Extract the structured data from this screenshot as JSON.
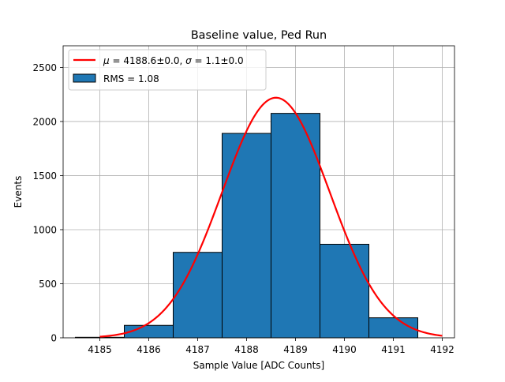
{
  "chart_data": {
    "type": "bar",
    "title": "Baseline value, Ped Run",
    "xlabel": "Sample Value [ADC Counts]",
    "ylabel": "Events",
    "xlim": [
      4184.25,
      4192.25
    ],
    "ylim": [
      0,
      2700
    ],
    "xticks": [
      4185,
      4186,
      4187,
      4188,
      4189,
      4190,
      4191,
      4192
    ],
    "yticks": [
      0,
      500,
      1000,
      1500,
      2000,
      2500
    ],
    "grid": true,
    "legend_position": "upper-left",
    "bins": [
      {
        "start": 4184.5,
        "end": 4185.5,
        "count": 5
      },
      {
        "start": 4185.5,
        "end": 4186.5,
        "count": 115
      },
      {
        "start": 4186.5,
        "end": 4187.5,
        "count": 790
      },
      {
        "start": 4187.5,
        "end": 4188.5,
        "count": 1890
      },
      {
        "start": 4188.5,
        "end": 4189.5,
        "count": 2075
      },
      {
        "start": 4189.5,
        "end": 4190.5,
        "count": 865
      },
      {
        "start": 4190.5,
        "end": 4191.5,
        "count": 185
      }
    ],
    "fit": {
      "mu": 4188.6,
      "sigma": 1.1,
      "amplitude": 2220,
      "x_range": [
        4185,
        4192
      ],
      "color": "#ff0000"
    },
    "bar_color": "#1f77b4",
    "legend": [
      {
        "mu_text": "4188.6±0.0",
        "sigma_text": "1.1±0.0",
        "kind": "line",
        "color": "#ff0000"
      },
      {
        "label": "RMS = 1.08",
        "kind": "patch",
        "color": "#1f77b4"
      }
    ]
  }
}
